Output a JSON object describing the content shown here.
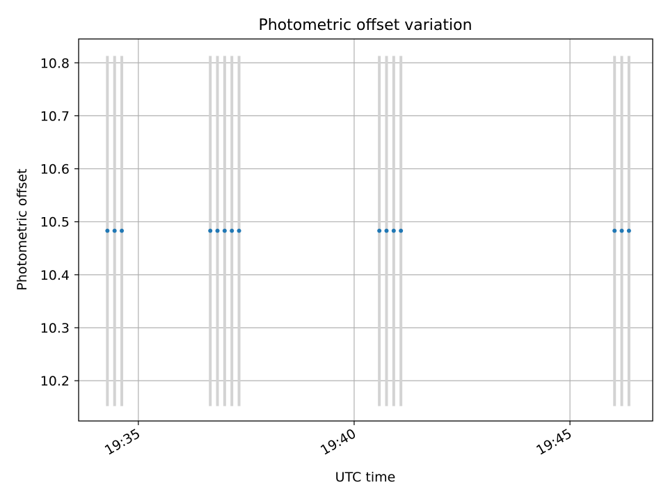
{
  "chart_data": {
    "type": "scatter",
    "title": "Photometric offset variation",
    "xlabel": "UTC time",
    "ylabel": "Photometric offset",
    "x_ticks": [
      "19:35",
      "19:40",
      "19:45"
    ],
    "y_ticks": [
      "10.2",
      "10.3",
      "10.4",
      "10.5",
      "10.6",
      "10.7",
      "10.8"
    ],
    "xlim": [
      "19:33:37",
      "19:46:55"
    ],
    "ylim": [
      10.124,
      10.845
    ],
    "grid": true,
    "marker_color": "#1f77b4",
    "errorbar_color": "#d3d3d3",
    "points": [
      {
        "time": "19:34:17",
        "offset": 10.483,
        "err_low": 10.152,
        "err_high": 10.813
      },
      {
        "time": "19:34:27",
        "offset": 10.483,
        "err_low": 10.152,
        "err_high": 10.813
      },
      {
        "time": "19:34:37",
        "offset": 10.483,
        "err_low": 10.152,
        "err_high": 10.813
      },
      {
        "time": "19:36:40",
        "offset": 10.483,
        "err_low": 10.152,
        "err_high": 10.813
      },
      {
        "time": "19:36:50",
        "offset": 10.483,
        "err_low": 10.152,
        "err_high": 10.813
      },
      {
        "time": "19:37:00",
        "offset": 10.483,
        "err_low": 10.152,
        "err_high": 10.813
      },
      {
        "time": "19:37:10",
        "offset": 10.483,
        "err_low": 10.152,
        "err_high": 10.813
      },
      {
        "time": "19:37:20",
        "offset": 10.483,
        "err_low": 10.152,
        "err_high": 10.813
      },
      {
        "time": "19:40:35",
        "offset": 10.483,
        "err_low": 10.152,
        "err_high": 10.813
      },
      {
        "time": "19:40:45",
        "offset": 10.483,
        "err_low": 10.152,
        "err_high": 10.813
      },
      {
        "time": "19:40:55",
        "offset": 10.483,
        "err_low": 10.152,
        "err_high": 10.813
      },
      {
        "time": "19:41:05",
        "offset": 10.483,
        "err_low": 10.152,
        "err_high": 10.813
      },
      {
        "time": "19:46:02",
        "offset": 10.483,
        "err_low": 10.152,
        "err_high": 10.813
      },
      {
        "time": "19:46:12",
        "offset": 10.483,
        "err_low": 10.152,
        "err_high": 10.813
      },
      {
        "time": "19:46:22",
        "offset": 10.483,
        "err_low": 10.152,
        "err_high": 10.813
      }
    ]
  }
}
